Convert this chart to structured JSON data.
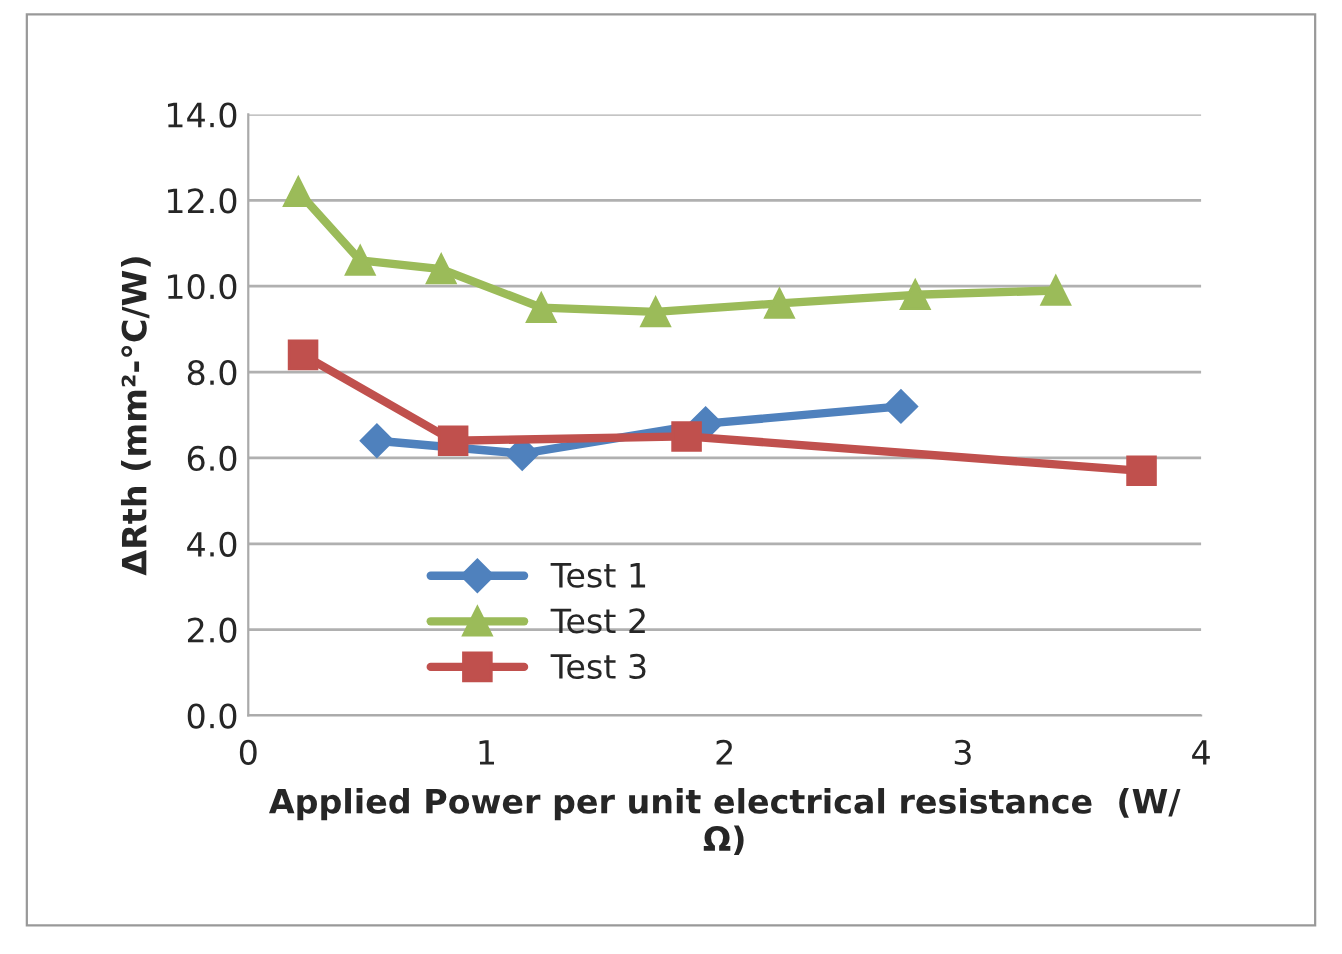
{
  "chart_data": {
    "type": "line",
    "xlabel": "Applied Power per unit electrical resistance  (W/\nΩ)",
    "ylabel": "ΔRth (mm²-°C/W)",
    "xlim": [
      0,
      4
    ],
    "xticks": [
      0,
      1,
      2,
      3,
      4
    ],
    "ylim": [
      0,
      14
    ],
    "yticks": [
      {
        "value": 0,
        "label": "0.0"
      },
      {
        "value": 2,
        "label": "2.0"
      },
      {
        "value": 4,
        "label": "4.0"
      },
      {
        "value": 6,
        "label": "6.0"
      },
      {
        "value": 8,
        "label": "8.0"
      },
      {
        "value": 10,
        "label": "10.0"
      },
      {
        "value": 12,
        "label": "12.0"
      },
      {
        "value": 14,
        "label": "14.0"
      }
    ],
    "grid": "y",
    "legend": "bottom left",
    "series": [
      {
        "name": "Test 1",
        "color": "#4f81bd",
        "marker": "diamond",
        "x": [
          0.54,
          1.15,
          1.92,
          2.74
        ],
        "values": [
          6.4,
          6.1,
          6.8,
          7.2
        ]
      },
      {
        "name": "Test 2",
        "color": "#9bbb59",
        "marker": "triangle",
        "x": [
          0.21,
          0.47,
          0.81,
          1.23,
          1.71,
          2.23,
          2.8,
          3.39
        ],
        "values": [
          12.2,
          10.6,
          10.4,
          9.5,
          9.4,
          9.6,
          9.8,
          9.9
        ]
      },
      {
        "name": "Test 3",
        "color": "#c0504d",
        "marker": "square",
        "x": [
          0.23,
          0.86,
          1.84,
          3.75
        ],
        "values": [
          8.4,
          6.4,
          6.5,
          5.7
        ]
      }
    ]
  }
}
